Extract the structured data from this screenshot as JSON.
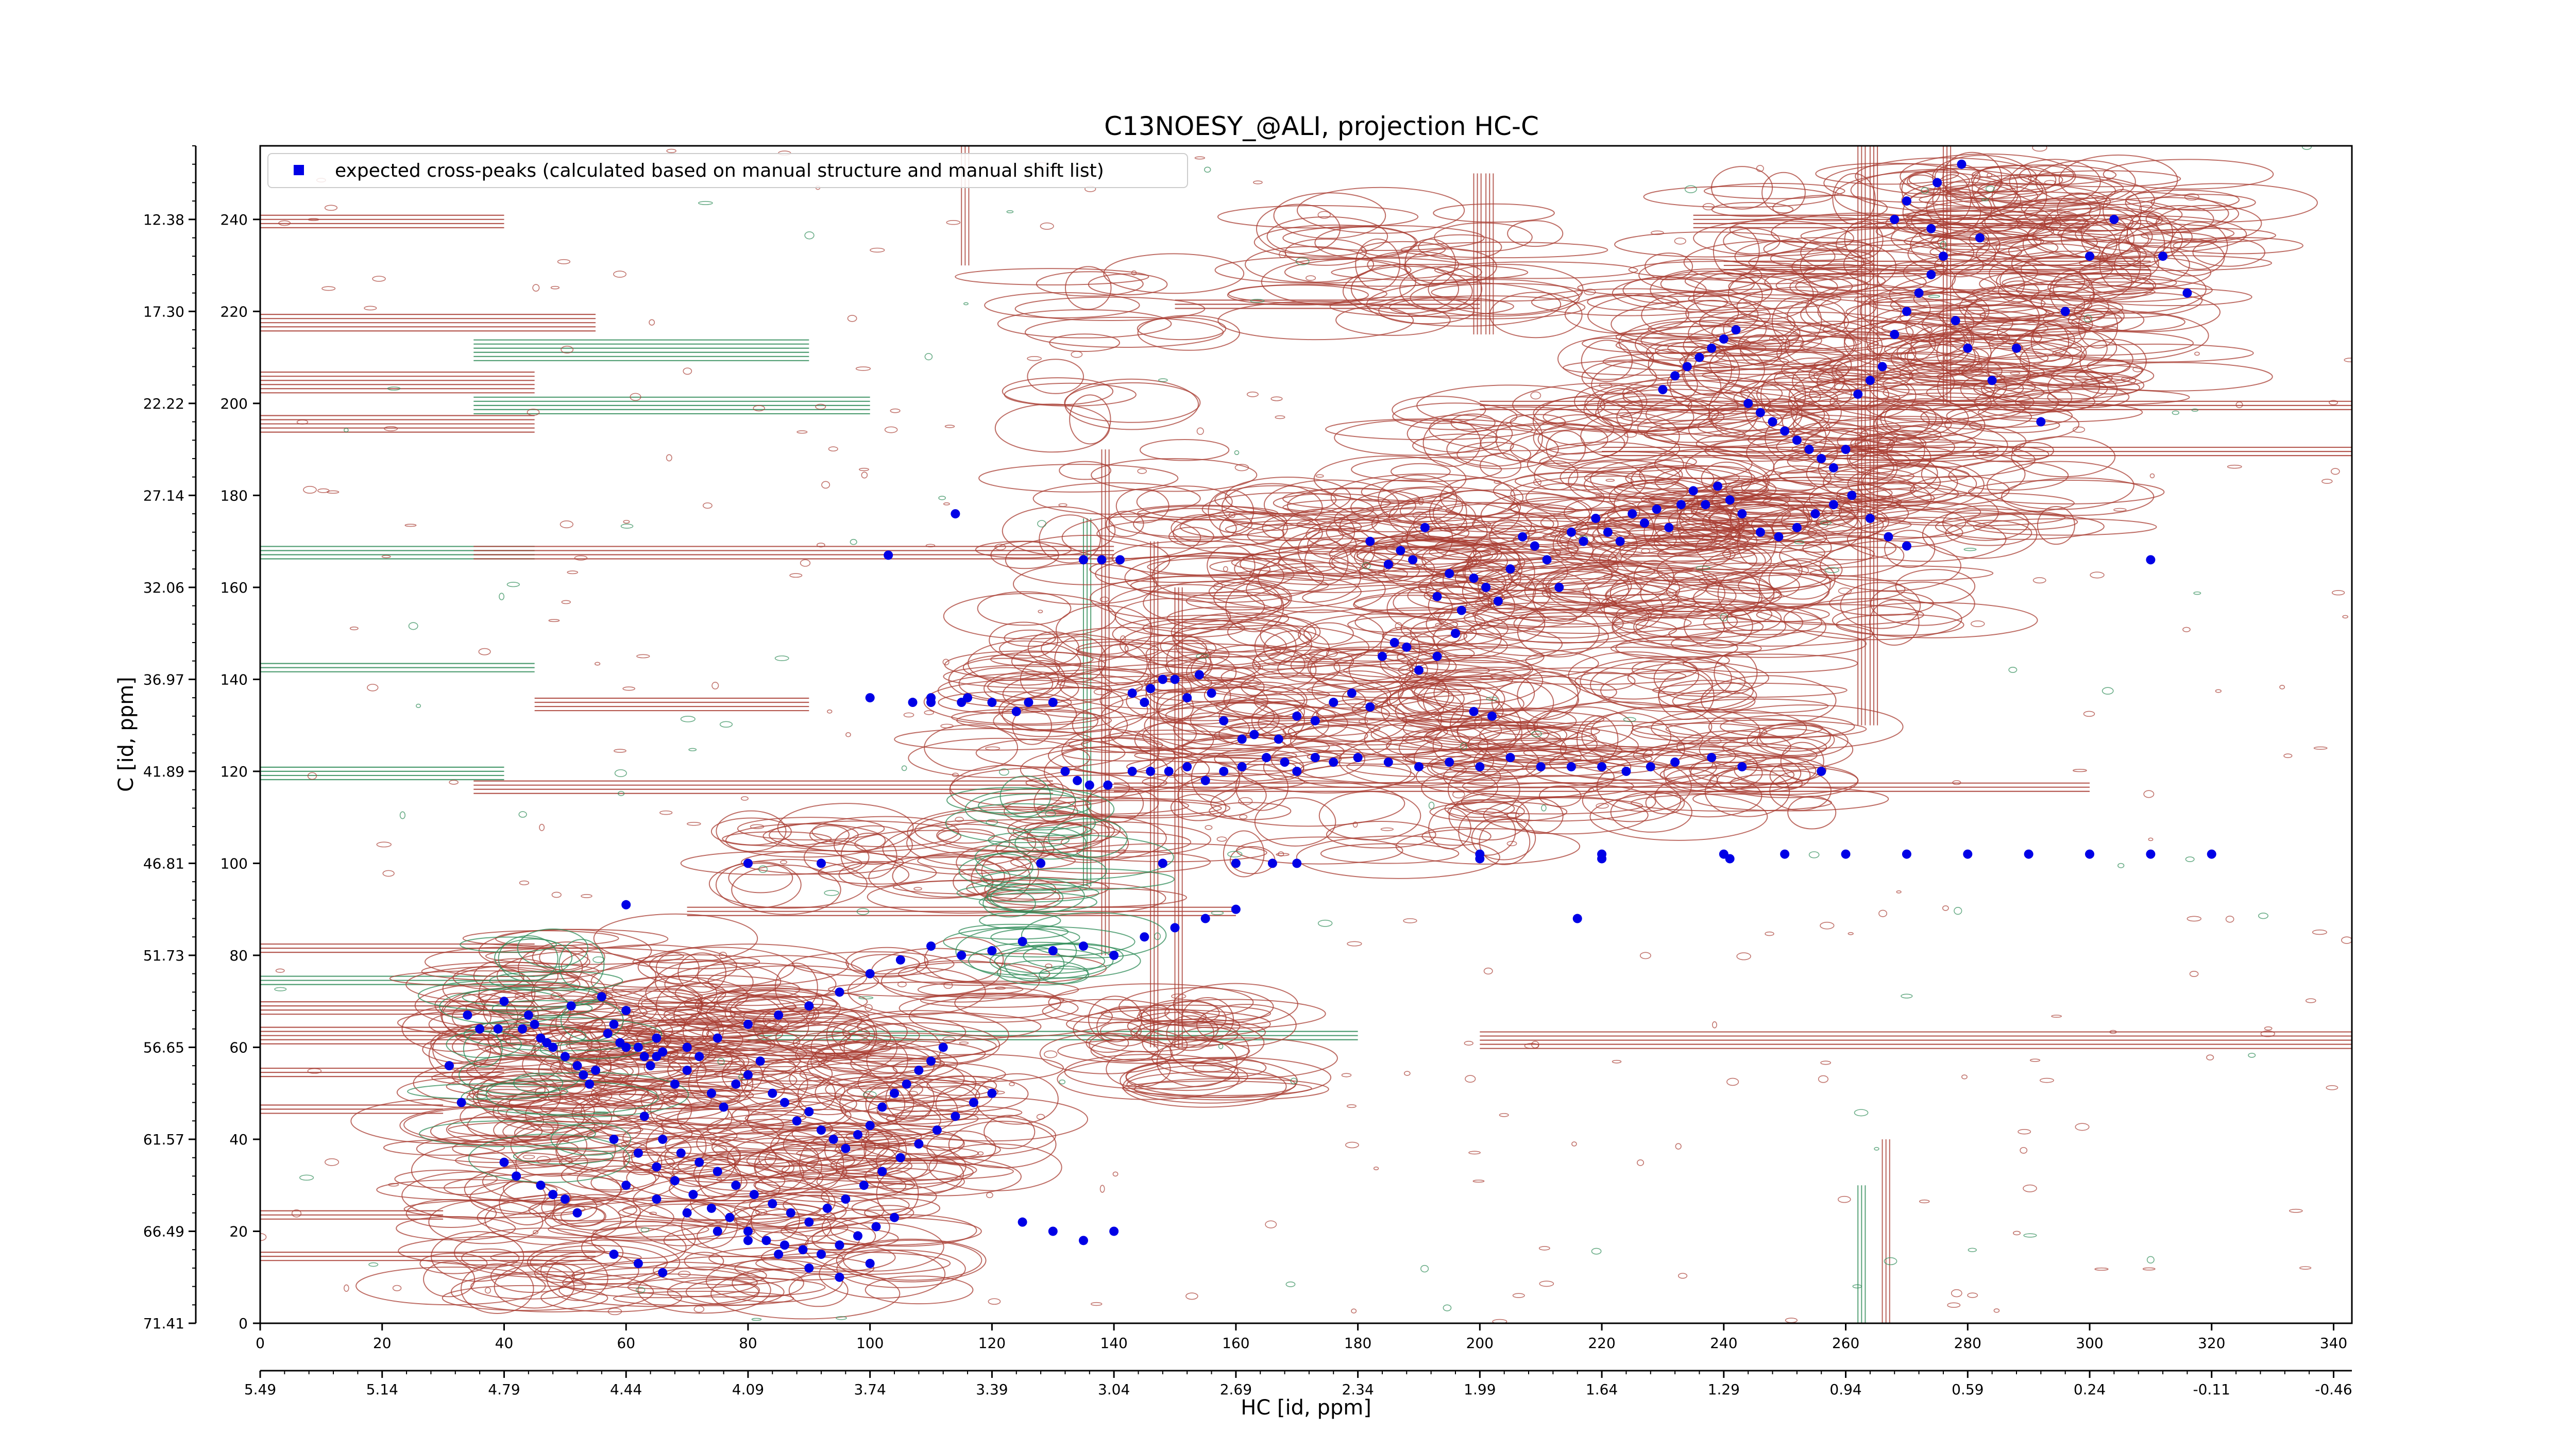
{
  "chart_data": {
    "type": "scatter",
    "title": "C13NOESY_@ALI, projection HC-C",
    "xlabel": "HC [id, ppm]",
    "ylabel": "C [id, ppm]",
    "xlim": [
      0,
      343
    ],
    "ylim": [
      0,
      256
    ],
    "x_index_ticks": [
      "0",
      "20",
      "40",
      "60",
      "80",
      "100",
      "120",
      "140",
      "160",
      "180",
      "200",
      "220",
      "240",
      "260",
      "280",
      "300",
      "320",
      "340"
    ],
    "x_ppm_ticks": [
      "5.49",
      "5.14",
      "4.79",
      "4.44",
      "4.09",
      "3.74",
      "3.39",
      "3.04",
      "2.69",
      "2.34",
      "1.99",
      "1.64",
      "1.29",
      "0.94",
      "0.59",
      "0.24",
      "-0.11",
      "-0.46"
    ],
    "y_index_ticks": [
      "0",
      "20",
      "40",
      "60",
      "80",
      "100",
      "120",
      "140",
      "160",
      "180",
      "200",
      "220",
      "240"
    ],
    "y_ppm_ticks": [
      "71.41",
      "66.49",
      "61.57",
      "56.65",
      "51.73",
      "46.81",
      "41.89",
      "36.97",
      "32.06",
      "27.14",
      "22.22",
      "17.30",
      "12.38"
    ],
    "legend": {
      "position": "top-left",
      "label": "expected cross-peaks (calculated based on manual structure and manual shift list)"
    },
    "colors": {
      "positive_contour": "#a83c32",
      "negative_contour": "#2e8b57",
      "marker": "#0000e6"
    },
    "series": [
      {
        "name": "expected cross-peaks (calculated based on manual structure and manual shift list)",
        "points": [
          [
            103,
            167
          ],
          [
            114,
            176
          ],
          [
            107,
            135
          ],
          [
            110,
            135
          ],
          [
            115,
            135
          ],
          [
            120,
            135
          ],
          [
            124,
            133
          ],
          [
            126,
            135
          ],
          [
            130,
            135
          ],
          [
            132,
            120
          ],
          [
            134,
            118
          ],
          [
            136,
            117
          ],
          [
            139,
            117
          ],
          [
            143,
            120
          ],
          [
            146,
            120
          ],
          [
            149,
            120
          ],
          [
            152,
            121
          ],
          [
            155,
            118
          ],
          [
            158,
            120
          ],
          [
            161,
            121
          ],
          [
            165,
            123
          ],
          [
            168,
            122
          ],
          [
            170,
            120
          ],
          [
            173,
            123
          ],
          [
            176,
            122
          ],
          [
            180,
            123
          ],
          [
            185,
            122
          ],
          [
            190,
            121
          ],
          [
            195,
            122
          ],
          [
            200,
            121
          ],
          [
            205,
            123
          ],
          [
            210,
            121
          ],
          [
            215,
            121
          ],
          [
            220,
            121
          ],
          [
            224,
            120
          ],
          [
            228,
            121
          ],
          [
            232,
            122
          ],
          [
            238,
            123
          ],
          [
            243,
            121
          ],
          [
            256,
            120
          ],
          [
            100,
            136
          ],
          [
            110,
            136
          ],
          [
            116,
            136
          ],
          [
            135,
            166
          ],
          [
            138,
            166
          ],
          [
            141,
            166
          ],
          [
            143,
            137
          ],
          [
            145,
            135
          ],
          [
            146,
            138
          ],
          [
            148,
            140
          ],
          [
            150,
            140
          ],
          [
            152,
            136
          ],
          [
            154,
            141
          ],
          [
            156,
            137
          ],
          [
            158,
            131
          ],
          [
            161,
            127
          ],
          [
            163,
            128
          ],
          [
            167,
            127
          ],
          [
            170,
            132
          ],
          [
            173,
            131
          ],
          [
            176,
            135
          ],
          [
            179,
            137
          ],
          [
            182,
            134
          ],
          [
            184,
            145
          ],
          [
            186,
            148
          ],
          [
            188,
            147
          ],
          [
            190,
            142
          ],
          [
            193,
            145
          ],
          [
            196,
            150
          ],
          [
            199,
            133
          ],
          [
            202,
            132
          ],
          [
            182,
            170
          ],
          [
            185,
            165
          ],
          [
            187,
            168
          ],
          [
            189,
            166
          ],
          [
            191,
            173
          ],
          [
            193,
            158
          ],
          [
            195,
            163
          ],
          [
            197,
            155
          ],
          [
            199,
            162
          ],
          [
            201,
            160
          ],
          [
            203,
            157
          ],
          [
            205,
            164
          ],
          [
            207,
            171
          ],
          [
            209,
            169
          ],
          [
            211,
            166
          ],
          [
            213,
            160
          ],
          [
            215,
            172
          ],
          [
            217,
            170
          ],
          [
            219,
            175
          ],
          [
            221,
            172
          ],
          [
            223,
            170
          ],
          [
            225,
            176
          ],
          [
            227,
            174
          ],
          [
            229,
            177
          ],
          [
            231,
            173
          ],
          [
            233,
            178
          ],
          [
            235,
            181
          ],
          [
            237,
            178
          ],
          [
            239,
            182
          ],
          [
            241,
            179
          ],
          [
            243,
            176
          ],
          [
            246,
            172
          ],
          [
            249,
            171
          ],
          [
            252,
            173
          ],
          [
            255,
            176
          ],
          [
            258,
            178
          ],
          [
            261,
            180
          ],
          [
            264,
            175
          ],
          [
            267,
            171
          ],
          [
            270,
            169
          ],
          [
            230,
            203
          ],
          [
            232,
            206
          ],
          [
            234,
            208
          ],
          [
            236,
            210
          ],
          [
            238,
            212
          ],
          [
            240,
            214
          ],
          [
            242,
            216
          ],
          [
            244,
            200
          ],
          [
            246,
            198
          ],
          [
            248,
            196
          ],
          [
            250,
            194
          ],
          [
            252,
            192
          ],
          [
            254,
            190
          ],
          [
            256,
            188
          ],
          [
            258,
            186
          ],
          [
            260,
            190
          ],
          [
            262,
            202
          ],
          [
            264,
            205
          ],
          [
            266,
            208
          ],
          [
            268,
            215
          ],
          [
            270,
            220
          ],
          [
            272,
            224
          ],
          [
            274,
            228
          ],
          [
            276,
            232
          ],
          [
            278,
            218
          ],
          [
            280,
            212
          ],
          [
            284,
            205
          ],
          [
            288,
            212
          ],
          [
            292,
            196
          ],
          [
            296,
            220
          ],
          [
            300,
            232
          ],
          [
            304,
            240
          ],
          [
            312,
            232
          ],
          [
            316,
            224
          ],
          [
            310,
            166
          ],
          [
            268,
            240
          ],
          [
            270,
            244
          ],
          [
            274,
            238
          ],
          [
            282,
            236
          ],
          [
            275,
            248
          ],
          [
            279,
            252
          ],
          [
            60,
            91
          ],
          [
            51,
            69
          ],
          [
            56,
            71
          ],
          [
            57,
            63
          ],
          [
            58,
            65
          ],
          [
            59,
            61
          ],
          [
            60,
            68
          ],
          [
            62,
            60
          ],
          [
            63,
            58
          ],
          [
            64,
            56
          ],
          [
            65,
            62
          ],
          [
            66,
            59
          ],
          [
            68,
            52
          ],
          [
            70,
            55
          ],
          [
            72,
            58
          ],
          [
            74,
            50
          ],
          [
            76,
            47
          ],
          [
            78,
            52
          ],
          [
            80,
            54
          ],
          [
            82,
            57
          ],
          [
            84,
            50
          ],
          [
            86,
            48
          ],
          [
            88,
            44
          ],
          [
            90,
            46
          ],
          [
            92,
            42
          ],
          [
            94,
            40
          ],
          [
            96,
            38
          ],
          [
            98,
            41
          ],
          [
            100,
            43
          ],
          [
            102,
            47
          ],
          [
            104,
            50
          ],
          [
            106,
            52
          ],
          [
            108,
            55
          ],
          [
            110,
            57
          ],
          [
            112,
            60
          ],
          [
            55,
            55
          ],
          [
            60,
            60
          ],
          [
            65,
            58
          ],
          [
            70,
            60
          ],
          [
            75,
            62
          ],
          [
            80,
            65
          ],
          [
            85,
            67
          ],
          [
            90,
            69
          ],
          [
            95,
            72
          ],
          [
            100,
            76
          ],
          [
            105,
            79
          ],
          [
            110,
            82
          ],
          [
            115,
            80
          ],
          [
            120,
            81
          ],
          [
            125,
            83
          ],
          [
            130,
            81
          ],
          [
            135,
            82
          ],
          [
            140,
            80
          ],
          [
            145,
            84
          ],
          [
            150,
            86
          ],
          [
            155,
            88
          ],
          [
            160,
            90
          ],
          [
            63,
            45
          ],
          [
            66,
            40
          ],
          [
            69,
            37
          ],
          [
            72,
            35
          ],
          [
            75,
            33
          ],
          [
            78,
            30
          ],
          [
            81,
            28
          ],
          [
            84,
            26
          ],
          [
            87,
            24
          ],
          [
            90,
            22
          ],
          [
            93,
            25
          ],
          [
            96,
            27
          ],
          [
            99,
            30
          ],
          [
            102,
            33
          ],
          [
            105,
            36
          ],
          [
            108,
            39
          ],
          [
            111,
            42
          ],
          [
            114,
            45
          ],
          [
            117,
            48
          ],
          [
            120,
            50
          ],
          [
            125,
            22
          ],
          [
            130,
            20
          ],
          [
            135,
            18
          ],
          [
            140,
            20
          ],
          [
            58,
            40
          ],
          [
            62,
            37
          ],
          [
            65,
            34
          ],
          [
            68,
            31
          ],
          [
            71,
            28
          ],
          [
            74,
            25
          ],
          [
            77,
            23
          ],
          [
            80,
            20
          ],
          [
            83,
            18
          ],
          [
            86,
            17
          ],
          [
            89,
            16
          ],
          [
            92,
            15
          ],
          [
            95,
            17
          ],
          [
            98,
            19
          ],
          [
            101,
            21
          ],
          [
            104,
            23
          ],
          [
            60,
            30
          ],
          [
            65,
            27
          ],
          [
            70,
            24
          ],
          [
            75,
            20
          ],
          [
            80,
            18
          ],
          [
            85,
            15
          ],
          [
            90,
            12
          ],
          [
            95,
            10
          ],
          [
            100,
            13
          ],
          [
            58,
            15
          ],
          [
            62,
            13
          ],
          [
            66,
            11
          ],
          [
            34,
            67
          ],
          [
            36,
            64
          ],
          [
            39,
            64
          ],
          [
            40,
            70
          ],
          [
            43,
            64
          ],
          [
            44,
            67
          ],
          [
            45,
            65
          ],
          [
            46,
            62
          ],
          [
            47,
            61
          ],
          [
            48,
            60
          ],
          [
            50,
            58
          ],
          [
            52,
            56
          ],
          [
            53,
            54
          ],
          [
            54,
            52
          ],
          [
            31,
            56
          ],
          [
            33,
            48
          ],
          [
            40,
            35
          ],
          [
            42,
            32
          ],
          [
            46,
            30
          ],
          [
            48,
            28
          ],
          [
            50,
            27
          ],
          [
            52,
            24
          ],
          [
            80,
            100
          ],
          [
            92,
            100
          ],
          [
            128,
            100
          ],
          [
            148,
            100
          ],
          [
            160,
            100
          ],
          [
            166,
            100
          ],
          [
            170,
            100
          ],
          [
            200,
            102
          ],
          [
            220,
            102
          ],
          [
            240,
            102
          ],
          [
            250,
            102
          ],
          [
            260,
            102
          ],
          [
            270,
            102
          ],
          [
            280,
            102
          ],
          [
            290,
            102
          ],
          [
            300,
            102
          ],
          [
            310,
            102
          ],
          [
            320,
            102
          ],
          [
            200,
            101
          ],
          [
            220,
            101
          ],
          [
            216,
            88
          ],
          [
            241,
            101
          ]
        ]
      }
    ]
  }
}
